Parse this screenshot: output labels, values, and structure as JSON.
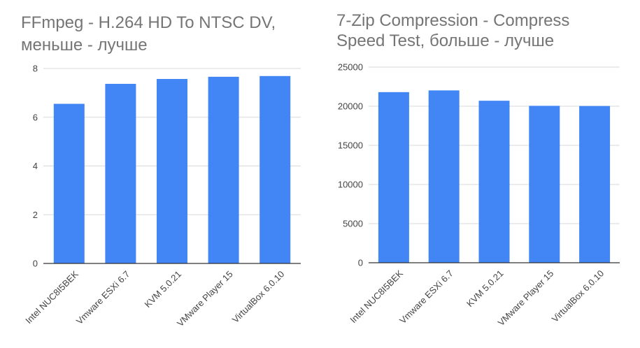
{
  "chart_data": [
    {
      "type": "bar",
      "title": [
        "FFmpeg - H.264 HD To NTSC DV,",
        "меньше - лучше"
      ],
      "categories": [
        "Intel NUC8I5BEK",
        "Vmware ESXi 6.7",
        "KVM 5.0.21",
        "VMware Player 15",
        "VirtualBox 6.0.10"
      ],
      "values": [
        6.55,
        7.37,
        7.57,
        7.66,
        7.69
      ],
      "yticks": [
        "0",
        "2",
        "4",
        "6",
        "8"
      ],
      "ylim": [
        0,
        8
      ],
      "grid": true,
      "legend": "none",
      "bar_color": "#4285f4"
    },
    {
      "type": "bar",
      "title": [
        "7-Zip Compression - Compress",
        "Speed Test, больше - лучше"
      ],
      "categories": [
        "Intel NUC8I5BEK",
        "Vmware ESXi 6.7",
        "KVM 5.0.21",
        "VMware Player 15",
        "VirtualBox 6.0.10"
      ],
      "values": [
        21800,
        22020,
        20700,
        20050,
        20030
      ],
      "yticks": [
        "0",
        "5000",
        "10000",
        "15000",
        "20000",
        "25000"
      ],
      "ylim": [
        0,
        25000
      ],
      "grid": true,
      "legend": "none",
      "bar_color": "#4285f4"
    }
  ]
}
